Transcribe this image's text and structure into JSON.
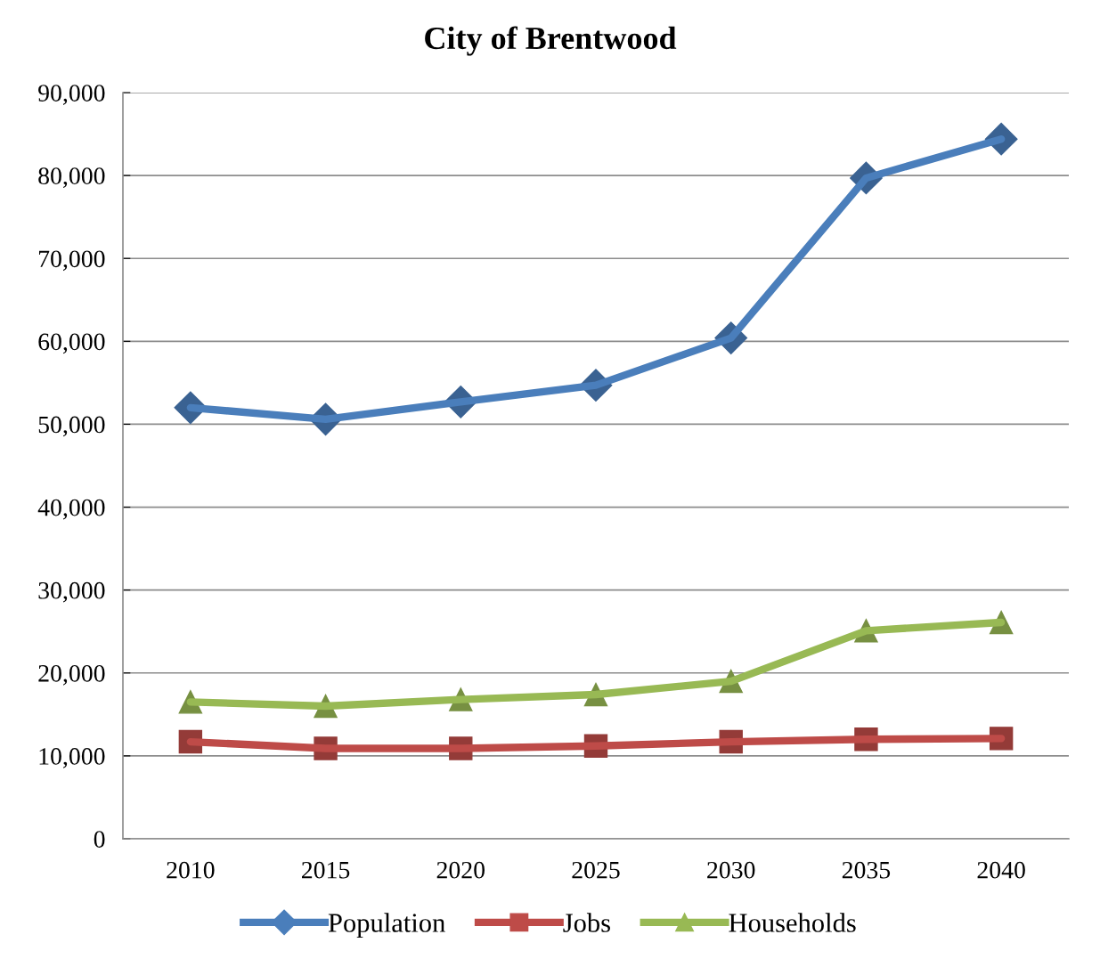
{
  "chart_data": {
    "type": "line",
    "title": "City of Brentwood",
    "categories": [
      "2010",
      "2015",
      "2020",
      "2025",
      "2030",
      "2035",
      "2040"
    ],
    "series": [
      {
        "name": "Population",
        "color": "#4a7ebb",
        "marker": "diamond",
        "values": [
          52000,
          50600,
          52700,
          54700,
          60400,
          79700,
          84400
        ]
      },
      {
        "name": "Jobs",
        "color": "#be4b48",
        "marker": "square",
        "values": [
          11700,
          10900,
          10900,
          11200,
          11700,
          12000,
          12100
        ]
      },
      {
        "name": "Households",
        "color": "#98b954",
        "marker": "triangle",
        "values": [
          16500,
          16000,
          16800,
          17400,
          19000,
          25100,
          26100
        ]
      }
    ],
    "ylim": [
      0,
      90000
    ],
    "yticks": [
      {
        "value": 0,
        "label": "0"
      },
      {
        "value": 10000,
        "label": "10,000"
      },
      {
        "value": 20000,
        "label": "20,000"
      },
      {
        "value": 30000,
        "label": "30,000"
      },
      {
        "value": 40000,
        "label": "40,000"
      },
      {
        "value": 50000,
        "label": "50,000"
      },
      {
        "value": 60000,
        "label": "60,000"
      },
      {
        "value": 70000,
        "label": "70,000"
      },
      {
        "value": 80000,
        "label": "80,000"
      },
      {
        "value": 90000,
        "label": "90,000"
      }
    ],
    "grid": "y",
    "legend": "bottom",
    "line_style": "solid"
  }
}
